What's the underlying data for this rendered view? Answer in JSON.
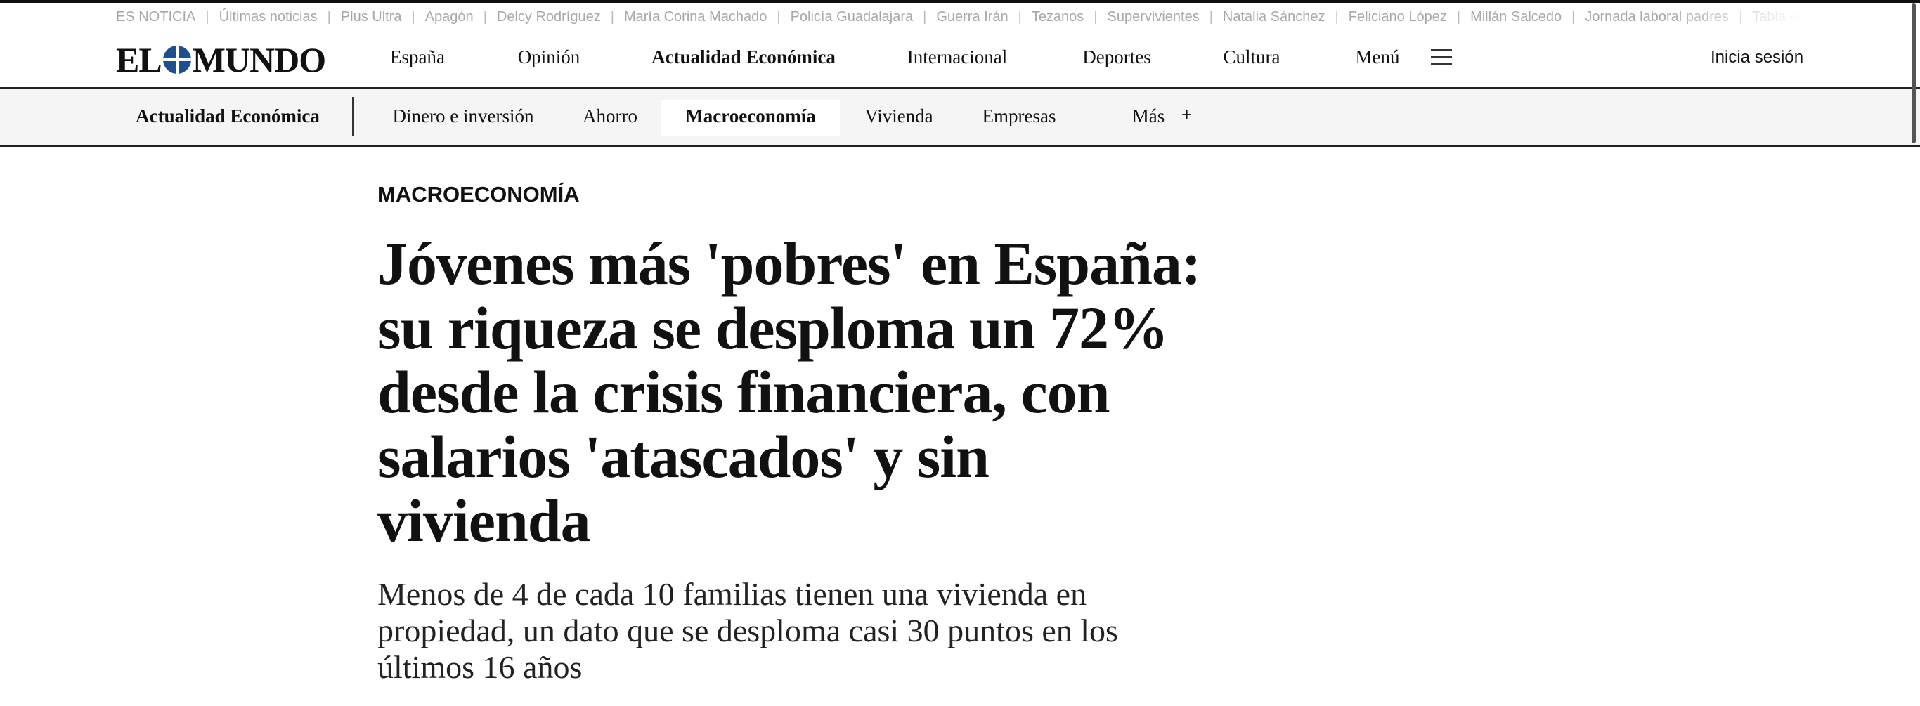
{
  "trending": [
    "ES NOTICIA",
    "Últimas noticias",
    "Plus Ultra",
    "Apagón",
    "Delcy Rodríguez",
    "María Corina Machado",
    "Policía Guadalajara",
    "Guerra Irán",
    "Tezanos",
    "Supervivientes",
    "Natalia Sánchez",
    "Feliciano López",
    "Millán Salcedo",
    "Jornada laboral padres",
    "Tabla equi"
  ],
  "logo": {
    "left": "EL",
    "right": "MUNDO"
  },
  "nav": [
    "España",
    "Opinión",
    "Actualidad Económica",
    "Internacional",
    "Deportes",
    "Cultura",
    "Menú"
  ],
  "login": "Inicia sesión",
  "subnav": {
    "section": "Actualidad Económica",
    "items": [
      "Dinero e inversión",
      "Ahorro",
      "Macroeconomía",
      "Vivienda",
      "Empresas",
      "Más"
    ],
    "more_icon": "+"
  },
  "article": {
    "section": "MACROECONOMÍA",
    "headline": [
      "Jóvenes más 'pobres' en España:",
      "su riqueza se desploma un 72%",
      "desde la crisis financiera, con",
      "salarios 'atascados' y sin",
      "vivienda"
    ],
    "subtitle": [
      "Menos de 4 de cada 10 familias tienen una vivienda en",
      "propiedad, un dato que se desploma casi 30 puntos en los",
      "últimos 16 años"
    ]
  }
}
